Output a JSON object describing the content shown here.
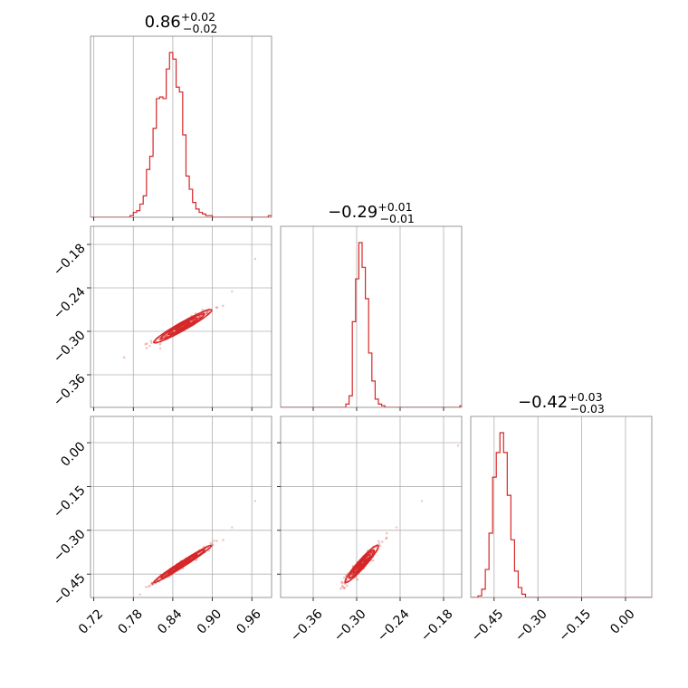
{
  "colors": {
    "series": "#d62728",
    "grid": "#b0b0b0",
    "frame": "#808080"
  },
  "chart_data": {
    "type": "corner",
    "grid": true,
    "parameters": [
      {
        "title": {
          "median": "0.86",
          "plus": "+0.02",
          "minus": "−0.02"
        },
        "range": [
          0.715,
          0.99
        ],
        "ticks": [
          0.72,
          0.78,
          0.84,
          0.9,
          0.96
        ],
        "tick_labels": [
          "0.72",
          "0.78",
          "0.84",
          "0.90",
          "0.96"
        ],
        "hist_edges_start": 0.715,
        "hist_bin_width": 0.005,
        "hist_counts": [
          0,
          0,
          0,
          0,
          0,
          0,
          0,
          0,
          0,
          0,
          0,
          0,
          1,
          3,
          4,
          8,
          13,
          29,
          37,
          54,
          72,
          73,
          72,
          90,
          100,
          96,
          79,
          76,
          50,
          25,
          17,
          9,
          5,
          3,
          2,
          1,
          1,
          0,
          0,
          0,
          0,
          0,
          0,
          0,
          0,
          0,
          0,
          0,
          0,
          0,
          0,
          0,
          0,
          0,
          1
        ]
      },
      {
        "title": {
          "median": "−0.29",
          "plus": "+0.01",
          "minus": "−0.01"
        },
        "range": [
          -0.405,
          -0.155
        ],
        "ticks": [
          -0.36,
          -0.3,
          -0.24,
          -0.18
        ],
        "tick_labels": [
          "−0.36",
          "−0.30",
          "−0.24",
          "−0.18"
        ],
        "hist_edges_start": -0.405,
        "hist_bin_width": 0.0045,
        "hist_counts": [
          0,
          0,
          0,
          0,
          0,
          0,
          0,
          0,
          0,
          0,
          0,
          0,
          0,
          0,
          0,
          0,
          0,
          0,
          0,
          0,
          2,
          7,
          52,
          78,
          100,
          85,
          66,
          33,
          16,
          5,
          2,
          1,
          0,
          0,
          0,
          0,
          0,
          0,
          0,
          0,
          0,
          0,
          0,
          0,
          0,
          0,
          0,
          0,
          0,
          0,
          0,
          0,
          0,
          0,
          0,
          1
        ]
      },
      {
        "title": {
          "median": "−0.42",
          "plus": "+0.03",
          "minus": "−0.03"
        },
        "range": [
          -0.53,
          0.09
        ],
        "ticks": [
          -0.45,
          -0.3,
          -0.15,
          0.0
        ],
        "tick_labels": [
          "−0.45",
          "−0.30",
          "−0.15",
          "0.00"
        ],
        "hist_edges_start": -0.53,
        "hist_bin_width": 0.0125,
        "hist_counts": [
          0,
          0,
          1,
          5,
          17,
          39,
          73,
          88,
          100,
          88,
          62,
          35,
          16,
          6,
          2,
          0,
          0,
          0,
          0,
          0,
          0,
          0,
          0,
          0,
          0,
          0,
          0,
          0,
          0,
          0,
          0,
          0,
          0,
          0,
          0,
          0,
          0,
          0,
          0,
          0,
          0,
          0,
          0,
          0,
          0,
          0,
          0,
          0,
          0,
          0
        ]
      }
    ],
    "correlations": [
      {
        "pair": [
          0,
          1
        ],
        "mean": [
          0.855,
          -0.293
        ],
        "sd": [
          0.022,
          0.0115
        ],
        "rho": 0.96,
        "outliers": [
          [
            0.965,
            -0.2
          ],
          [
            0.93,
            -0.245
          ],
          [
            0.805,
            -0.32
          ]
        ]
      },
      {
        "pair": [
          0,
          2
        ],
        "mean": [
          0.855,
          -0.415
        ],
        "sd": [
          0.022,
          0.032
        ],
        "rho": 0.985,
        "outliers": [
          [
            0.965,
            -0.2
          ],
          [
            0.93,
            -0.29
          ],
          [
            0.79,
            -0.52
          ]
        ]
      },
      {
        "pair": [
          1,
          2
        ],
        "mean": [
          -0.293,
          -0.415
        ],
        "sd": [
          0.0115,
          0.032
        ],
        "rho": 0.95,
        "outliers": [
          [
            -0.16,
            -0.01
          ],
          [
            -0.21,
            -0.2
          ],
          [
            -0.245,
            -0.29
          ]
        ]
      }
    ]
  }
}
